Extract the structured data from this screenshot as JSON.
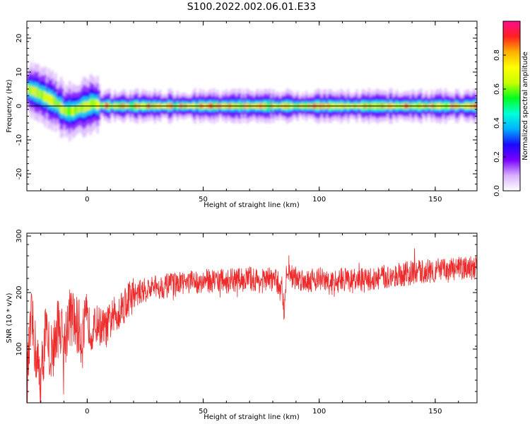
{
  "title": "S100.2022.002.06.01.E33",
  "chart_data": [
    {
      "type": "heatmap",
      "title": "S100.2022.002.06.01.E33",
      "xlabel": "Height of straight line (km)",
      "ylabel": "Frequency (Hz)",
      "xlim": [
        -26,
        168
      ],
      "ylim": [
        -25,
        25
      ],
      "xticks": [
        0,
        50,
        100,
        150
      ],
      "yticks": [
        -20,
        -10,
        0,
        10,
        20
      ],
      "ridge_frequency_hz": {
        "x": [
          -26,
          -22,
          -18,
          -14,
          -10,
          -6,
          -3,
          0,
          2,
          5,
          10,
          20,
          40,
          60,
          80,
          100,
          120,
          140,
          168
        ],
        "y": [
          5,
          4,
          2.5,
          1,
          -1.5,
          -1.5,
          -0.5,
          0,
          0.8,
          0.2,
          0,
          0,
          0,
          0,
          0,
          0,
          0,
          0,
          0
        ]
      },
      "colorbar": {
        "label": "Normalized spectral amplitude",
        "range": [
          0,
          1
        ],
        "ticks": [
          0.0,
          0.2,
          0.4,
          0.6,
          0.8
        ],
        "tick_labels": [
          "0.0",
          "0.2",
          "0.4",
          "0.6",
          "0.8"
        ],
        "colormap": "gist_ncar-like",
        "colors": [
          "#ffffff",
          "#d8b0ff",
          "#7a00ff",
          "#1a0aff",
          "#00b0ff",
          "#00ffd8",
          "#00ff20",
          "#c8ff00",
          "#ffff00",
          "#ffb000",
          "#ff2020",
          "#ff0a8c"
        ]
      }
    },
    {
      "type": "line",
      "xlabel": "Height of straight line (km)",
      "ylabel": "SNR (10 * v/v)",
      "xlim": [
        -26,
        168
      ],
      "ylim": [
        5,
        305
      ],
      "xticks": [
        0,
        50,
        100,
        150
      ],
      "yticks": [
        100,
        200,
        300
      ],
      "series": [
        {
          "color": "#ee2a2a",
          "x": [
            -26,
            -24,
            -22,
            -20,
            -18,
            -16,
            -14,
            -12,
            -10,
            -8,
            -6,
            -4,
            -2,
            0,
            2,
            4,
            6,
            8,
            10,
            12,
            14,
            16,
            18,
            20,
            25,
            30,
            35,
            40,
            45,
            50,
            55,
            60,
            65,
            70,
            75,
            80,
            84,
            85,
            86,
            87,
            88,
            90,
            95,
            100,
            105,
            110,
            115,
            120,
            125,
            130,
            135,
            140,
            145,
            150,
            155,
            160,
            165,
            168
          ],
          "y": [
            40,
            150,
            90,
            40,
            130,
            90,
            110,
            150,
            100,
            160,
            150,
            140,
            120,
            150,
            130,
            145,
            140,
            135,
            150,
            160,
            170,
            180,
            190,
            195,
            205,
            210,
            212,
            215,
            218,
            220,
            222,
            220,
            222,
            225,
            220,
            225,
            210,
            160,
            240,
            245,
            230,
            225,
            222,
            225,
            215,
            225,
            220,
            222,
            225,
            228,
            232,
            235,
            238,
            240,
            238,
            242,
            244,
            242
          ]
        }
      ]
    }
  ]
}
